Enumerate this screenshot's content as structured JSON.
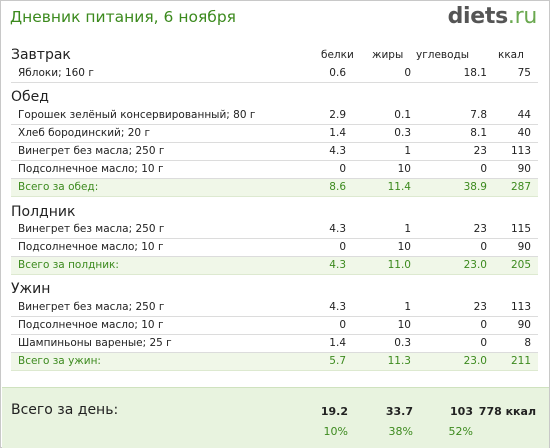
{
  "header": {
    "title": "Дневник питания, 6 ноября",
    "logo_main": "diets",
    "logo_tld": ".ru"
  },
  "columns": {
    "proteins": "белки",
    "fats": "жиры",
    "carbs": "углеводы",
    "kcal": "ккал"
  },
  "meals": [
    {
      "title": "Завтрак",
      "items": [
        {
          "name": "Яблоки; 160 г",
          "proteins": "0.6",
          "fats": "0",
          "carbs": "18.1",
          "kcal": "75"
        }
      ]
    },
    {
      "title": "Обед",
      "items": [
        {
          "name": "Горошек зелёный консервированный; 80 г",
          "proteins": "2.9",
          "fats": "0.1",
          "carbs": "7.8",
          "kcal": "44"
        },
        {
          "name": "Хлеб бородинский; 20 г",
          "proteins": "1.4",
          "fats": "0.3",
          "carbs": "8.1",
          "kcal": "40"
        },
        {
          "name": "Винегрет без масла; 250 г",
          "proteins": "4.3",
          "fats": "1",
          "carbs": "23",
          "kcal": "113"
        },
        {
          "name": "Подсолнечное масло; 10 г",
          "proteins": "0",
          "fats": "10",
          "carbs": "0",
          "kcal": "90"
        }
      ],
      "total": {
        "name": "Всего за обед:",
        "proteins": "8.6",
        "fats": "11.4",
        "carbs": "38.9",
        "kcal": "287"
      }
    },
    {
      "title": "Полдник",
      "items": [
        {
          "name": "Винегрет без масла; 250 г",
          "proteins": "4.3",
          "fats": "1",
          "carbs": "23",
          "kcal": "115"
        },
        {
          "name": "Подсолнечное масло; 10 г",
          "proteins": "0",
          "fats": "10",
          "carbs": "0",
          "kcal": "90"
        }
      ],
      "total": {
        "name": "Всего за полдник:",
        "proteins": "4.3",
        "fats": "11.0",
        "carbs": "23.0",
        "kcal": "205"
      }
    },
    {
      "title": "Ужин",
      "items": [
        {
          "name": "Винегрет без масла; 250 г",
          "proteins": "4.3",
          "fats": "1",
          "carbs": "23",
          "kcal": "113"
        },
        {
          "name": "Подсолнечное масло; 10 г",
          "proteins": "0",
          "fats": "10",
          "carbs": "0",
          "kcal": "90"
        },
        {
          "name": "Шампиньоны вареные; 25 г",
          "proteins": "1.4",
          "fats": "0.3",
          "carbs": "0",
          "kcal": "8"
        }
      ],
      "total": {
        "name": "Всего за ужин:",
        "proteins": "5.7",
        "fats": "11.3",
        "carbs": "23.0",
        "kcal": "211"
      }
    }
  ],
  "day_total": {
    "label": "Всего за день:",
    "proteins": "19.2",
    "fats": "33.7",
    "carbs": "103",
    "kcal": "778 ккал",
    "proteins_pct": "10%",
    "fats_pct": "38%",
    "carbs_pct": "52%"
  },
  "colors": {
    "accent_green": "#3c8a1e",
    "total_row_bg": "#f0f7e8",
    "day_panel_bg": "#e8f3df"
  }
}
